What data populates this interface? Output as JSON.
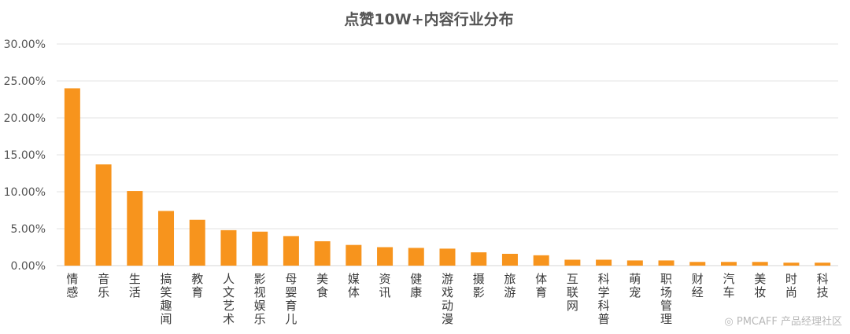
{
  "chart_data": {
    "type": "bar",
    "title": "点赞10W+内容行业分布",
    "xlabel": "",
    "ylabel": "",
    "ylim": [
      0,
      30
    ],
    "y_ticks": [
      "0.00%",
      "5.00%",
      "10.00%",
      "15.00%",
      "20.00%",
      "25.00%",
      "30.00%"
    ],
    "grid": true,
    "legend": "none",
    "bar_color": "#F7941D",
    "categories": [
      "情感",
      "音乐",
      "生活",
      "搞笑趣闻",
      "教育",
      "人文艺术",
      "影视娱乐",
      "母婴育儿",
      "美食",
      "媒体",
      "资讯",
      "健康",
      "游戏动漫",
      "摄影",
      "旅游",
      "体育",
      "互联网",
      "科学科普",
      "萌宠",
      "职场管理",
      "财经",
      "汽车",
      "美妆",
      "时尚",
      "科技"
    ],
    "values": [
      24.0,
      13.7,
      10.1,
      7.4,
      6.2,
      4.8,
      4.6,
      4.0,
      3.3,
      2.8,
      2.5,
      2.4,
      2.3,
      1.8,
      1.6,
      1.4,
      0.8,
      0.8,
      0.7,
      0.7,
      0.5,
      0.5,
      0.5,
      0.4,
      0.4
    ]
  },
  "footer": {
    "brand": "PMCAFF 产品经理社区"
  }
}
